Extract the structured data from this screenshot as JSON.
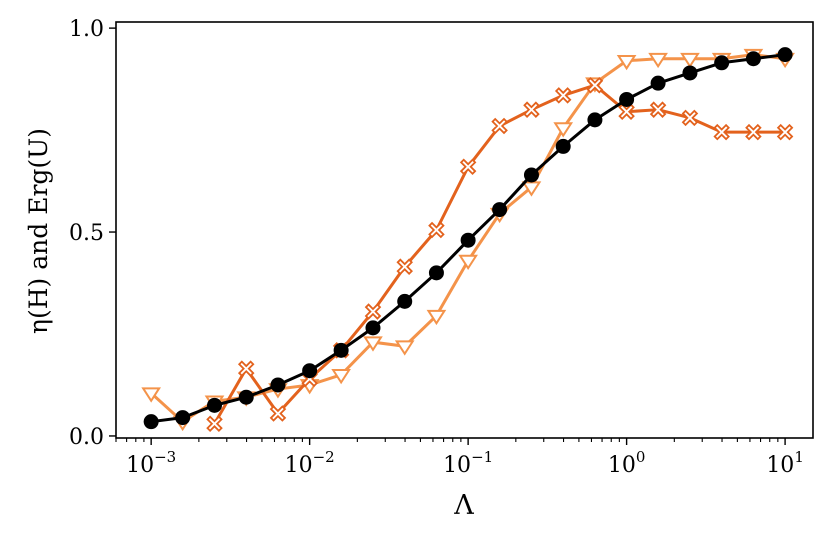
{
  "chart_data": {
    "type": "line",
    "title": "",
    "xlabel": "Λ",
    "ylabel": "η(H) and Erg(U)",
    "xscale": "log",
    "xlim": [
      0.0006,
      15
    ],
    "ylim": [
      -0.005,
      1.015
    ],
    "legend": "none",
    "grid": false,
    "xticks": [
      {
        "value": 0.001,
        "base": "10",
        "exp": "−3"
      },
      {
        "value": 0.01,
        "base": "10",
        "exp": "−2"
      },
      {
        "value": 0.1,
        "base": "10",
        "exp": "−1"
      },
      {
        "value": 1,
        "base": "10",
        "exp": "0"
      },
      {
        "value": 10,
        "base": "10",
        "exp": "1"
      }
    ],
    "yticks": [
      {
        "value": 0.0,
        "label": "0.0"
      },
      {
        "value": 0.5,
        "label": "0.5"
      },
      {
        "value": 1.0,
        "label": "1.0"
      }
    ],
    "series": [
      {
        "color": "#f4934a",
        "marker": "triangle-down-open",
        "x": [
          0.001,
          0.00158,
          0.00251,
          0.00398,
          0.00631,
          0.01,
          0.0158,
          0.0251,
          0.0398,
          0.0631,
          0.1,
          0.158,
          0.251,
          0.398,
          0.631,
          1.0,
          1.58,
          2.51,
          3.98,
          6.31,
          10.0
        ],
        "y": [
          0.105,
          0.035,
          0.085,
          0.095,
          0.115,
          0.125,
          0.15,
          0.23,
          0.22,
          0.295,
          0.43,
          0.545,
          0.61,
          0.755,
          0.865,
          0.92,
          0.925,
          0.925,
          0.925,
          0.935,
          0.925
        ]
      },
      {
        "color": "#e3621d",
        "marker": "x-open",
        "x": [
          0.00251,
          0.00398,
          0.00631,
          0.01,
          0.0158,
          0.0251,
          0.0398,
          0.0631,
          0.1,
          0.158,
          0.251,
          0.398,
          0.631,
          1.0,
          1.58,
          2.51,
          3.98,
          6.31,
          10.0
        ],
        "y": [
          0.03,
          0.165,
          0.055,
          0.14,
          0.21,
          0.305,
          0.415,
          0.505,
          0.66,
          0.76,
          0.8,
          0.835,
          0.86,
          0.795,
          0.8,
          0.78,
          0.745,
          0.745,
          0.745
        ]
      },
      {
        "color": "#000000",
        "marker": "circle-filled",
        "x": [
          0.001,
          0.00158,
          0.00251,
          0.00398,
          0.00631,
          0.01,
          0.0158,
          0.0251,
          0.0398,
          0.0631,
          0.1,
          0.158,
          0.251,
          0.398,
          0.631,
          1.0,
          1.58,
          2.51,
          3.98,
          6.31,
          10.0
        ],
        "y": [
          0.035,
          0.045,
          0.075,
          0.095,
          0.125,
          0.16,
          0.21,
          0.265,
          0.33,
          0.4,
          0.48,
          0.555,
          0.64,
          0.71,
          0.775,
          0.825,
          0.865,
          0.89,
          0.915,
          0.925,
          0.935
        ]
      }
    ]
  }
}
